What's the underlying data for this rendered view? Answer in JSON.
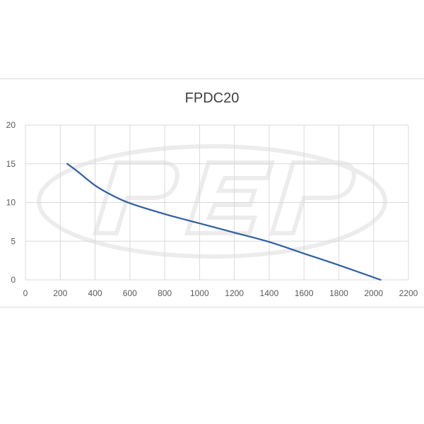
{
  "chart_data": {
    "type": "line",
    "title": "FPDC20",
    "xlabel": "",
    "ylabel": "",
    "xlim": [
      0,
      2200
    ],
    "ylim": [
      0,
      20
    ],
    "x_ticks": [
      0,
      200,
      400,
      600,
      800,
      1000,
      1200,
      1400,
      1600,
      1800,
      2000,
      2200
    ],
    "y_ticks": [
      0,
      5,
      10,
      15,
      20
    ],
    "grid": true,
    "legend": "none",
    "watermark": "PEP logo",
    "series": [
      {
        "color": "#2e5fa3",
        "x": [
          240,
          300,
          400,
          500,
          600,
          800,
          1000,
          1200,
          1400,
          1600,
          1800,
          2040
        ],
        "y": [
          15.0,
          14.0,
          12.2,
          10.9,
          9.9,
          8.5,
          7.3,
          6.1,
          4.9,
          3.4,
          1.9,
          0.0
        ]
      }
    ]
  }
}
